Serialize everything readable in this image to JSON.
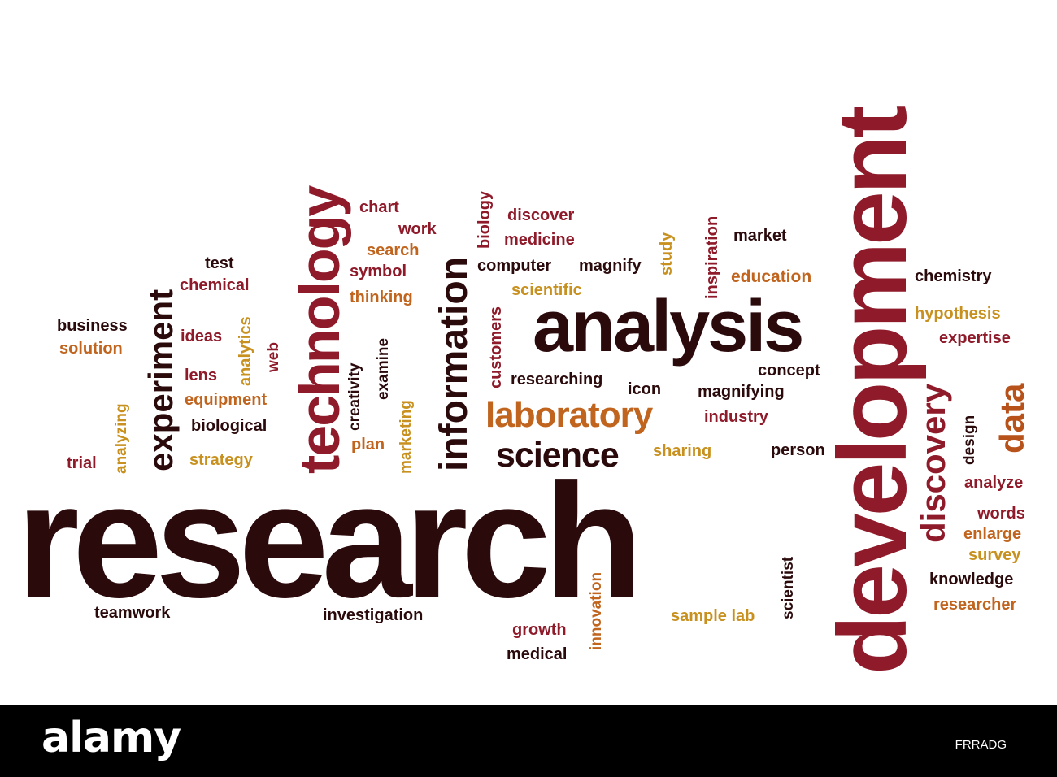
{
  "words": {
    "research": "research",
    "development": "development",
    "analysis": "analysis",
    "technology": "technology",
    "information": "information",
    "laboratory": "laboratory",
    "science": "science",
    "experiment": "experiment",
    "discovery": "discovery",
    "data": "data",
    "chart": "chart",
    "work": "work",
    "search": "search",
    "symbol": "symbol",
    "thinking": "thinking",
    "biology": "biology",
    "discover": "discover",
    "medicine": "medicine",
    "computer": "computer",
    "magnify": "magnify",
    "study": "study",
    "inspiration": "inspiration",
    "market": "market",
    "education": "education",
    "chemistry": "chemistry",
    "hypothesis": "hypothesis",
    "expertise": "expertise",
    "test": "test",
    "chemical": "chemical",
    "scientific": "scientific",
    "customers": "customers",
    "business": "business",
    "solution": "solution",
    "ideas": "ideas",
    "analytics": "analytics",
    "web": "web",
    "creativity": "creativity",
    "examine": "examine",
    "lens": "lens",
    "equipment": "equipment",
    "biological": "biological",
    "strategy": "strategy",
    "analyzing": "analyzing",
    "trial": "trial",
    "plan": "plan",
    "marketing": "marketing",
    "researching": "researching",
    "icon": "icon",
    "magnifying": "magnifying",
    "concept": "concept",
    "industry": "industry",
    "sharing": "sharing",
    "person": "person",
    "design": "design",
    "analyze": "analyze",
    "words": "words",
    "enlarge": "enlarge",
    "survey": "survey",
    "knowledge": "knowledge",
    "researcher": "researcher",
    "teamwork": "teamwork",
    "investigation": "investigation",
    "innovation": "innovation",
    "growth": "growth",
    "medical": "medical",
    "sample_lab": "sample lab",
    "scientist": "scientist"
  },
  "footer": {
    "logo": "alamy",
    "image_code": "FRRADG"
  }
}
